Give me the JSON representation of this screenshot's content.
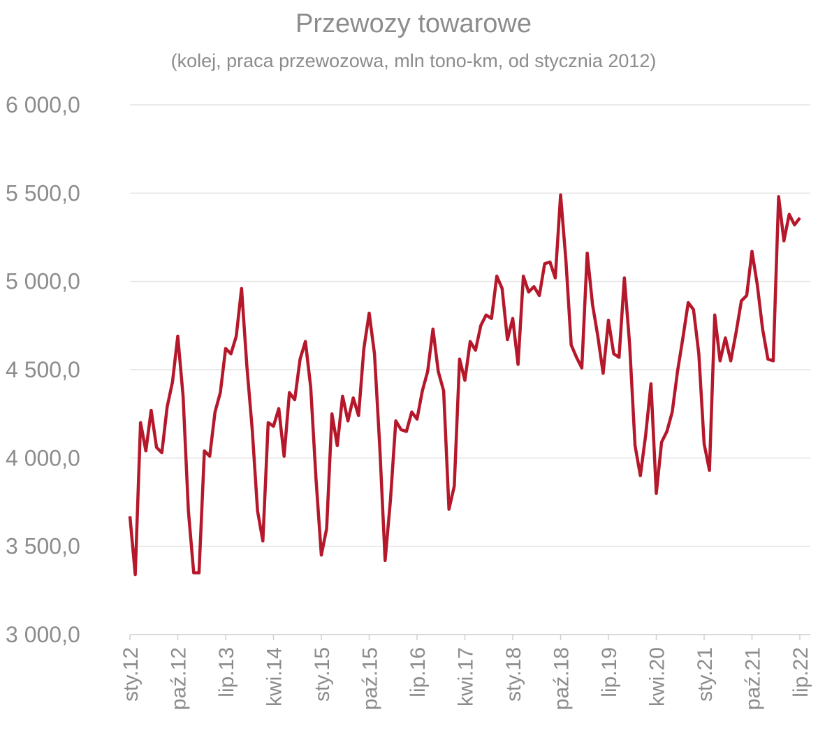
{
  "chart_data": {
    "type": "line",
    "title": "Przewozy towarowe",
    "subtitle": "(kolej, praca przewozowa, mln tono-km, od stycznia 2012)",
    "categories": [
      "sty.12",
      null,
      null,
      null,
      null,
      null,
      null,
      null,
      null,
      "paź.12",
      null,
      null,
      null,
      null,
      null,
      null,
      null,
      null,
      "lip.13",
      null,
      null,
      null,
      null,
      null,
      null,
      null,
      null,
      "kwi.14",
      null,
      null,
      null,
      null,
      null,
      null,
      null,
      null,
      "sty.15",
      null,
      null,
      null,
      null,
      null,
      null,
      null,
      null,
      "paź.15",
      null,
      null,
      null,
      null,
      null,
      null,
      null,
      null,
      "lip.16",
      null,
      null,
      null,
      null,
      null,
      null,
      null,
      null,
      "kwi.17",
      null,
      null,
      null,
      null,
      null,
      null,
      null,
      null,
      "sty.18",
      null,
      null,
      null,
      null,
      null,
      null,
      null,
      null,
      "paź.18",
      null,
      null,
      null,
      null,
      null,
      null,
      null,
      null,
      "lip.19",
      null,
      null,
      null,
      null,
      null,
      null,
      null,
      null,
      "kwi.20",
      null,
      null,
      null,
      null,
      null,
      null,
      null,
      null,
      "sty.21",
      null,
      null,
      null,
      null,
      null,
      null,
      null,
      null,
      "paź.21",
      null,
      null,
      null,
      null,
      null,
      null,
      null,
      null,
      "lip.22"
    ],
    "values": [
      3670,
      3340,
      4200,
      4040,
      4270,
      4060,
      4030,
      4290,
      4430,
      4690,
      4350,
      3700,
      3350,
      3350,
      4040,
      4010,
      4260,
      4370,
      4620,
      4590,
      4690,
      4960,
      4520,
      4160,
      3700,
      3530,
      4200,
      4180,
      4280,
      4010,
      4370,
      4330,
      4560,
      4660,
      4400,
      3880,
      3450,
      3600,
      4250,
      4070,
      4350,
      4210,
      4340,
      4240,
      4620,
      4820,
      4590,
      4060,
      3420,
      3760,
      4210,
      4160,
      4150,
      4260,
      4220,
      4380,
      4490,
      4730,
      4490,
      4380,
      3710,
      3840,
      4560,
      4440,
      4660,
      4610,
      4750,
      4810,
      4790,
      5030,
      4960,
      4670,
      4790,
      4530,
      5030,
      4940,
      4970,
      4920,
      5100,
      5110,
      5020,
      5490,
      5120,
      4640,
      4570,
      4510,
      5160,
      4870,
      4690,
      4480,
      4780,
      4590,
      4570,
      5020,
      4640,
      4070,
      3900,
      4130,
      4420,
      3800,
      4090,
      4150,
      4260,
      4490,
      4680,
      4880,
      4840,
      4590,
      4080,
      3930,
      4810,
      4550,
      4680,
      4550,
      4710,
      4890,
      4920,
      5170,
      4980,
      4730,
      4560,
      4550,
      5480,
      5230,
      5380,
      5320,
      5360
    ],
    "color": "#b5182b",
    "ylim": [
      3000,
      6000
    ],
    "yticks": [
      {
        "value": 3000,
        "label": "3 000,0"
      },
      {
        "value": 3500,
        "label": "3 500,0"
      },
      {
        "value": 4000,
        "label": "4 000,0"
      },
      {
        "value": 4500,
        "label": "4 500,0"
      },
      {
        "value": 5000,
        "label": "5 000,0"
      },
      {
        "value": 5500,
        "label": "5 500,0"
      },
      {
        "value": 6000,
        "label": "6 000,0"
      }
    ],
    "grid": true
  }
}
